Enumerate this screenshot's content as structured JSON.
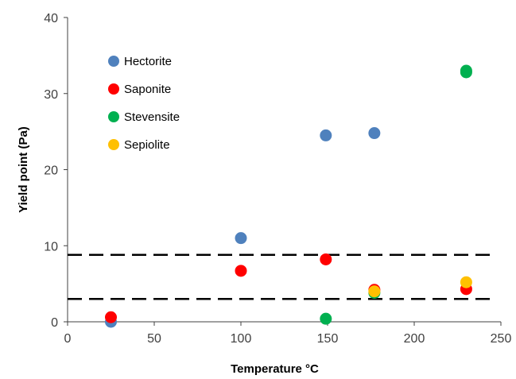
{
  "chart_data": {
    "type": "scatter",
    "title": "",
    "xlabel": "Temperature °C",
    "ylabel": "Yield point (Pa)",
    "xlim": [
      0,
      250
    ],
    "ylim": [
      0,
      40
    ],
    "xticks": [
      0,
      50,
      100,
      150,
      200,
      250
    ],
    "yticks": [
      0,
      10,
      20,
      30,
      40
    ],
    "grid": false,
    "legend_position": "top-left",
    "series": [
      {
        "name": "Hectorite",
        "color": "#4f81bd",
        "points": [
          [
            25,
            0.0
          ],
          [
            100,
            11.0
          ],
          [
            149,
            24.5
          ],
          [
            177,
            24.8
          ]
        ]
      },
      {
        "name": "Saponite",
        "color": "#ff0000",
        "points": [
          [
            25,
            0.6
          ],
          [
            100,
            6.7
          ],
          [
            149,
            8.2
          ],
          [
            177,
            4.2
          ],
          [
            230,
            4.3
          ]
        ]
      },
      {
        "name": "Stevensite",
        "color": "#00b050",
        "points": [
          [
            149,
            0.4
          ],
          [
            177,
            3.8
          ],
          [
            230,
            32.8
          ],
          [
            230,
            33.0
          ]
        ]
      },
      {
        "name": "Sepiolite",
        "color": "#ffc000",
        "points": [
          [
            177,
            4.0
          ],
          [
            230,
            5.2
          ]
        ]
      }
    ],
    "reference_lines": [
      {
        "style": "dashed",
        "y": 8.8,
        "x_range": [
          0,
          245
        ]
      },
      {
        "style": "dashed",
        "y": 3.0,
        "x_range": [
          0,
          245
        ]
      }
    ]
  }
}
